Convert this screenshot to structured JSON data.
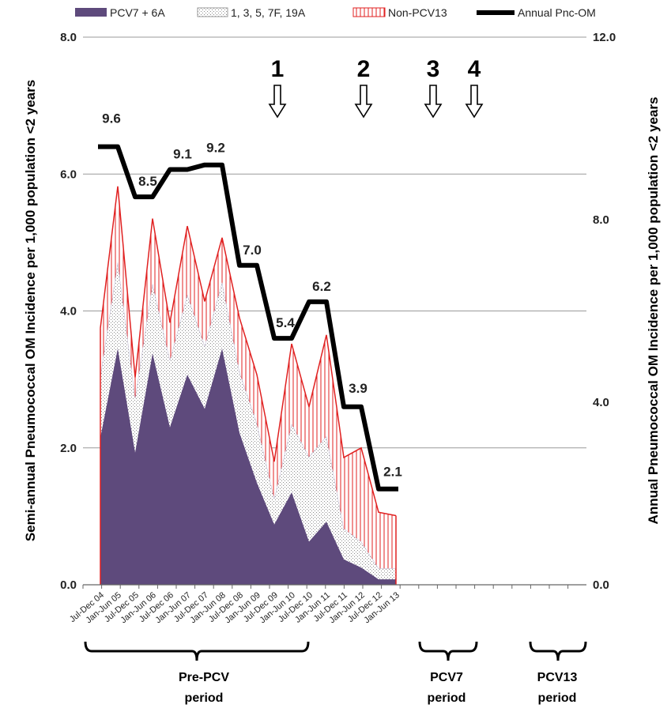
{
  "chart_data": {
    "type": "area",
    "x": [
      "Jul-Dec 04",
      "Jan-Jun 05",
      "Jul-Dec 05",
      "Jan-Jun 06",
      "Jul-Dec 06",
      "Jan-Jun 07",
      "Jul-Dec 07",
      "Jan-Jun 08",
      "Jul-Dec 08",
      "Jan-Jun 09",
      "Jul-Dec 09",
      "Jan-Jun 10",
      "Jul-Dec 10",
      "Jan-Jun 11",
      "Jul-Dec 11",
      "Jan-Jun 12",
      "Jul-Dec 12",
      "Jan-Jun 13"
    ],
    "series": [
      {
        "name": "PCV7 + 6A",
        "axis": "left",
        "stack": "semi",
        "color": "#5e4a7c",
        "values": [
          2.15,
          3.45,
          1.93,
          3.38,
          2.3,
          3.07,
          2.57,
          3.45,
          2.22,
          1.49,
          0.88,
          1.35,
          0.63,
          0.92,
          0.37,
          0.25,
          0.08,
          0.08
        ]
      },
      {
        "name": "1, 3, 5, 7F, 19A",
        "axis": "left",
        "stack": "semi",
        "color": "#c8c8c8",
        "values": [
          0.9,
          1.27,
          0.8,
          1.02,
          0.98,
          1.17,
          0.92,
          0.97,
          0.89,
          0.87,
          0.38,
          1.0,
          1.24,
          1.25,
          0.45,
          0.38,
          0.16,
          0.16
        ]
      },
      {
        "name": "Non-PCV13",
        "axis": "left",
        "stack": "semi",
        "color": "#e02020",
        "values": [
          0.7,
          1.1,
          0.3,
          0.95,
          0.55,
          1.0,
          0.65,
          0.65,
          0.79,
          0.71,
          0.54,
          1.17,
          0.73,
          1.48,
          1.04,
          1.37,
          0.82,
          0.77
        ]
      },
      {
        "name": "Annual Pnc-OM",
        "axis": "right",
        "type": "line",
        "color": "#000000",
        "values": [
          9.6,
          9.6,
          8.5,
          8.5,
          9.1,
          9.1,
          9.2,
          9.2,
          7.0,
          7.0,
          5.4,
          5.4,
          6.2,
          6.2,
          3.9,
          3.9,
          2.1,
          2.1
        ]
      }
    ],
    "data_labels": [
      {
        "index": 0,
        "text": "9.6"
      },
      {
        "index": 2,
        "text": "8.5"
      },
      {
        "index": 4,
        "text": "9.1"
      },
      {
        "index": 6,
        "text": "9.2"
      },
      {
        "index": 8,
        "text": "7.0"
      },
      {
        "index": 10,
        "text": "5.4"
      },
      {
        "index": 12,
        "text": "6.2"
      },
      {
        "index": 14,
        "text": "3.9"
      },
      {
        "index": 16,
        "text": "2.1"
      }
    ],
    "ylim_left": [
      0,
      8
    ],
    "ylim_right": [
      0,
      12
    ],
    "yticks_left": [
      "0.0",
      "2.0",
      "4.0",
      "6.0",
      "8.0"
    ],
    "yticks_right": [
      "0.0",
      "4.0",
      "8.0",
      "12.0"
    ],
    "ylabel_left": "Semi-annual Pneumococcal OM Incidence  per 1,000 population <2 years",
    "ylabel_right": "Annual Pneumococcal OM Incidence  per 1,000 population <2 years",
    "gridlines": true,
    "legend_position": "top",
    "annotations": {
      "arrows": [
        {
          "label": "1",
          "at_index": 7
        },
        {
          "label": "2",
          "at_index": 11
        },
        {
          "label": "3",
          "at_index": 14
        },
        {
          "label": "4",
          "at_index": 16
        }
      ],
      "periods": [
        {
          "line1": "Pre-PCV",
          "line2": "period",
          "from_index": 0,
          "to_index": 9
        },
        {
          "line1": "PCV7",
          "line2": "period",
          "from_index": 14,
          "to_index": 16
        },
        {
          "line1": "PCV13",
          "line2": "period",
          "from_index": 18,
          "to_index": 20
        }
      ]
    }
  }
}
